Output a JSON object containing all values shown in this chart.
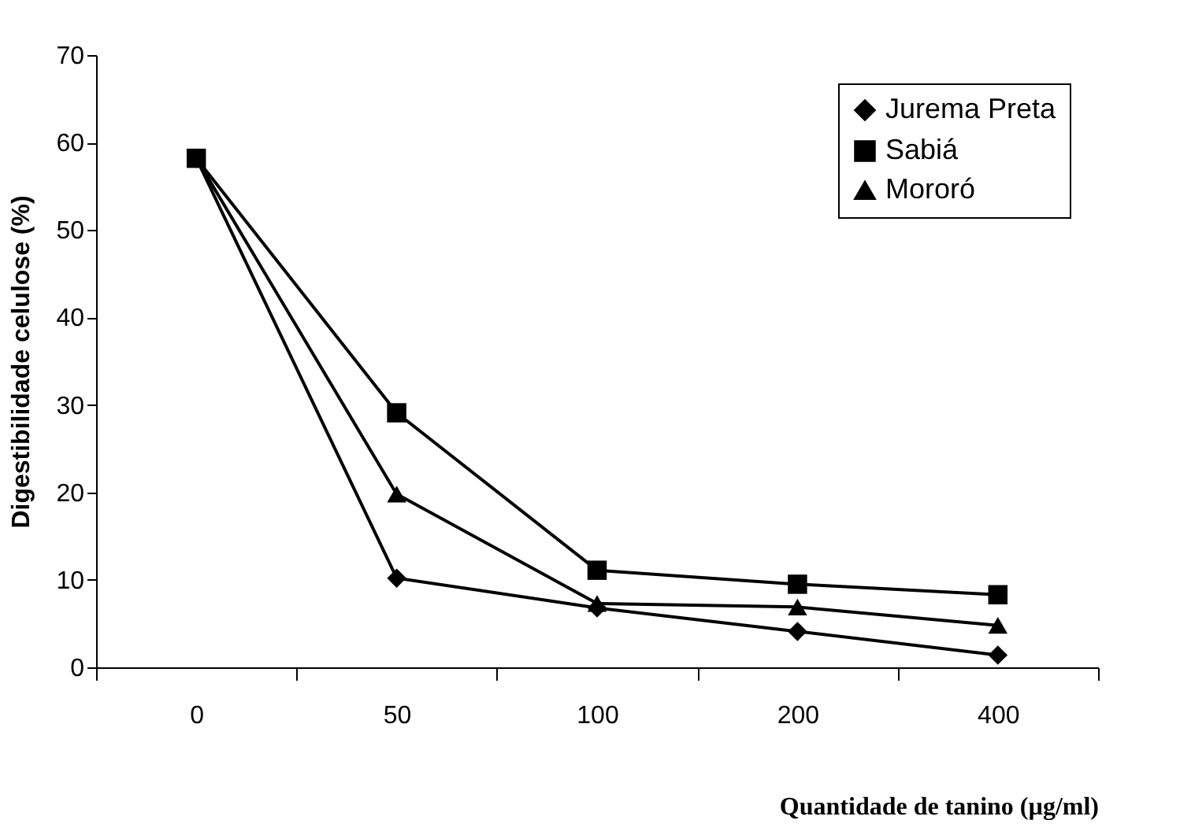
{
  "chart_data": {
    "type": "line",
    "xlabel": "Quantidade de tanino (µg/ml)",
    "ylabel": "Digestibilidade celulose (%)",
    "categories": [
      "0",
      "50",
      "100",
      "200",
      "400"
    ],
    "series": [
      {
        "name": "Jurema Preta",
        "color": "#000000",
        "marker": "diamond",
        "values": [
          58.2,
          10.2,
          6.8,
          4.1,
          1.4
        ]
      },
      {
        "name": "Sabiá",
        "color": "#000000",
        "marker": "square",
        "values": [
          58.2,
          29.1,
          11.1,
          9.5,
          8.3
        ]
      },
      {
        "name": "Mororó",
        "color": "#000000",
        "marker": "triangle",
        "values": [
          58.2,
          19.8,
          7.3,
          6.9,
          4.8
        ]
      }
    ],
    "ylim": [
      0,
      70
    ],
    "yticks": [
      0,
      10,
      20,
      30,
      40,
      50,
      60,
      70
    ],
    "grid": false,
    "legend": "top right",
    "line_style": "solid"
  }
}
